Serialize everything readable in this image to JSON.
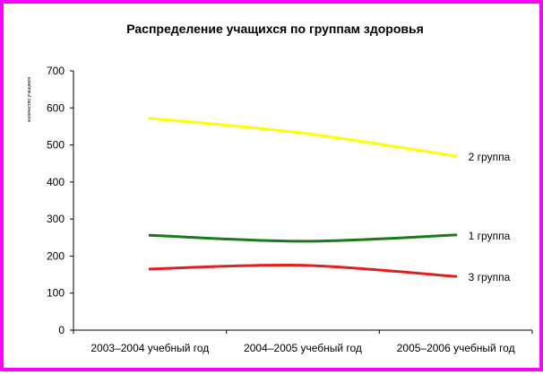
{
  "chart_data": {
    "type": "line",
    "title": "Распределение учащихся по группам здоровья",
    "ylabel": "количество учащихся",
    "xlabel": "",
    "categories": [
      "2003–2004 учебный год",
      "2004–2005 учебный год",
      "2005–2006 учебный год"
    ],
    "ylim": [
      0,
      700
    ],
    "yticks": [
      0,
      100,
      200,
      300,
      400,
      500,
      600,
      700
    ],
    "grid": false,
    "legend": "labels at line ends (right)",
    "series": [
      {
        "name": "2 группа",
        "values": [
          572,
          532,
          470
        ],
        "color": "#ffff00"
      },
      {
        "name": "1 группа",
        "values": [
          256,
          240,
          257
        ],
        "color": "#1a7a1a"
      },
      {
        "name": "3 группа",
        "values": [
          165,
          175,
          145
        ],
        "color": "#e02020"
      }
    ]
  },
  "colors": {
    "frame_border": "#ff00ff",
    "axis": "#000000"
  }
}
